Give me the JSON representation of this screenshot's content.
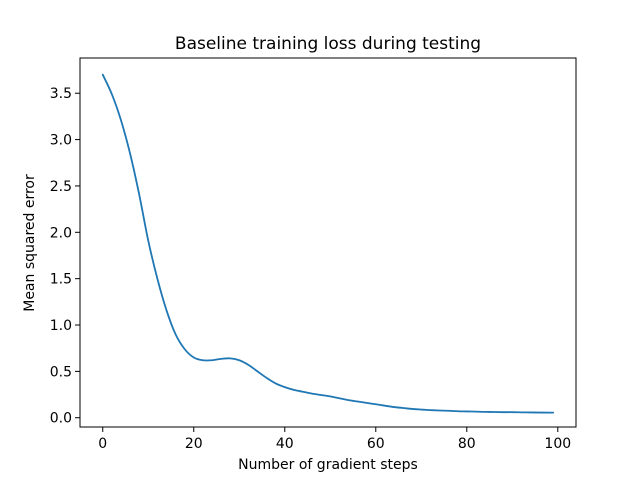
{
  "chart_data": {
    "type": "line",
    "title": "Baseline training loss during testing",
    "xlabel": "Number of gradient steps",
    "ylabel": "Mean squared error",
    "xlim": [
      -5,
      104
    ],
    "ylim": [
      -0.1,
      3.88
    ],
    "xticks": [
      0,
      20,
      40,
      60,
      80,
      100
    ],
    "xtick_labels": [
      "0",
      "20",
      "40",
      "60",
      "80",
      "100"
    ],
    "yticks": [
      0.0,
      0.5,
      1.0,
      1.5,
      2.0,
      2.5,
      3.0,
      3.5
    ],
    "ytick_labels": [
      "0.0",
      "0.5",
      "1.0",
      "1.5",
      "2.0",
      "2.5",
      "3.0",
      "3.5"
    ],
    "grid": false,
    "legend": "none",
    "line_color": "#1f77b4",
    "series": [
      {
        "x": [
          0,
          2,
          4,
          6,
          8,
          10,
          12,
          14,
          16,
          18,
          20,
          22,
          24,
          26,
          28,
          30,
          32,
          34,
          36,
          38,
          40,
          42,
          44,
          46,
          48,
          50,
          52,
          54,
          56,
          58,
          60,
          62,
          64,
          66,
          68,
          70,
          72,
          74,
          76,
          78,
          80,
          82,
          84,
          86,
          88,
          90,
          92,
          94,
          96,
          98,
          99
        ],
        "values": [
          3.7,
          3.49,
          3.21,
          2.85,
          2.41,
          1.91,
          1.5,
          1.16,
          0.9,
          0.74,
          0.65,
          0.62,
          0.62,
          0.635,
          0.64,
          0.62,
          0.57,
          0.5,
          0.43,
          0.37,
          0.33,
          0.3,
          0.28,
          0.26,
          0.245,
          0.23,
          0.21,
          0.19,
          0.175,
          0.16,
          0.145,
          0.13,
          0.115,
          0.105,
          0.095,
          0.088,
          0.082,
          0.078,
          0.075,
          0.07,
          0.068,
          0.066,
          0.063,
          0.062,
          0.06,
          0.06,
          0.058,
          0.057,
          0.056,
          0.055,
          0.055
        ]
      }
    ]
  }
}
